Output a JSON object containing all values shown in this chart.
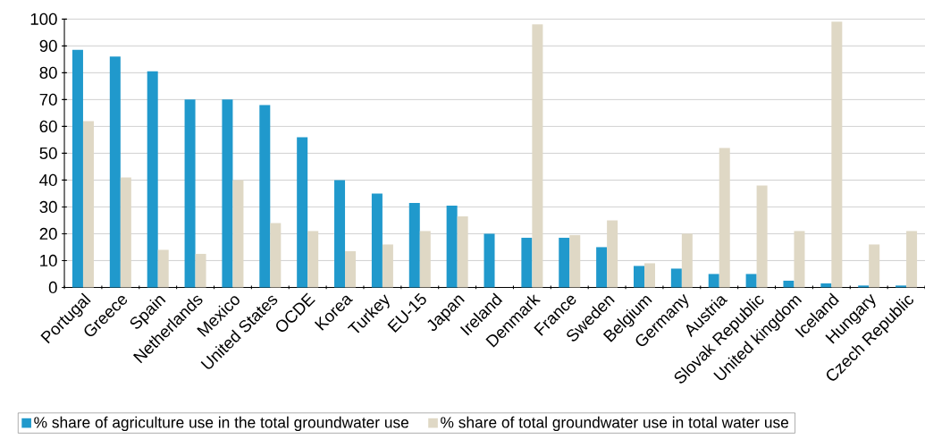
{
  "chart_data": {
    "type": "bar",
    "categories": [
      "Portugal",
      "Greece",
      "Spain",
      "Netherlands",
      "Mexico",
      "United States",
      "OCDE",
      "Korea",
      "Turkey",
      "EU-15",
      "Japan",
      "Ireland",
      "Denmark",
      "France",
      "Sweden",
      "Belgium",
      "Germany",
      "Austria",
      "Slovak Republic",
      "United kingdom",
      "Iceland",
      "Hungary",
      "Czech Republic"
    ],
    "series": [
      {
        "name": "% share of agriculture use in the total groundwater use",
        "color": "#2099cc",
        "values": [
          88.5,
          86,
          80.5,
          70,
          70,
          68,
          56,
          40,
          35,
          31.5,
          30.5,
          20,
          18.5,
          18.5,
          15,
          8,
          7,
          5,
          5,
          2.5,
          1.5,
          0.7,
          0.7
        ]
      },
      {
        "name": "% share of total groundwater use in total water use",
        "color": "#dfd8c5",
        "values": [
          62,
          41,
          14,
          12.5,
          40,
          24,
          21,
          13.5,
          16,
          21,
          26.5,
          null,
          98,
          19.5,
          25,
          9,
          20,
          52,
          38,
          21,
          99,
          16,
          21
        ]
      }
    ],
    "ylim": [
      0,
      100
    ],
    "yticks": [
      0,
      10,
      20,
      30,
      40,
      50,
      60,
      70,
      80,
      90,
      100
    ],
    "grid": "y",
    "legend": "bottom"
  }
}
